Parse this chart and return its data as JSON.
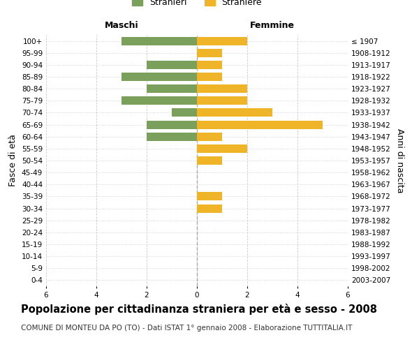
{
  "age_groups": [
    "0-4",
    "5-9",
    "10-14",
    "15-19",
    "20-24",
    "25-29",
    "30-34",
    "35-39",
    "40-44",
    "45-49",
    "50-54",
    "55-59",
    "60-64",
    "65-69",
    "70-74",
    "75-79",
    "80-84",
    "85-89",
    "90-94",
    "95-99",
    "100+"
  ],
  "birth_years": [
    "2003-2007",
    "1998-2002",
    "1993-1997",
    "1988-1992",
    "1983-1987",
    "1978-1982",
    "1973-1977",
    "1968-1972",
    "1963-1967",
    "1958-1962",
    "1953-1957",
    "1948-1952",
    "1943-1947",
    "1938-1942",
    "1933-1937",
    "1928-1932",
    "1923-1927",
    "1918-1922",
    "1913-1917",
    "1908-1912",
    "≤ 1907"
  ],
  "maschi": [
    3,
    0,
    2,
    3,
    2,
    3,
    1,
    2,
    2,
    0,
    0,
    0,
    0,
    0,
    0,
    0,
    0,
    0,
    0,
    0,
    0
  ],
  "femmine": [
    2,
    1,
    1,
    1,
    2,
    2,
    3,
    5,
    1,
    2,
    1,
    0,
    0,
    1,
    1,
    0,
    0,
    0,
    0,
    0,
    0
  ],
  "maschi_color": "#7ba05b",
  "femmine_color": "#f0b429",
  "bar_height": 0.7,
  "title": "Popolazione per cittadinanza straniera per età e sesso - 2008",
  "subtitle": "COMUNE DI MONTEU DA PO (TO) - Dati ISTAT 1° gennaio 2008 - Elaborazione TUTTITALIA.IT",
  "xlabel_left": "Maschi",
  "xlabel_right": "Femmine",
  "ylabel_left": "Fasce di età",
  "ylabel_right": "Anni di nascita",
  "legend_stranieri": "Stranieri",
  "legend_straniere": "Straniere",
  "bg_color": "#ffffff",
  "grid_color": "#cccccc",
  "title_fontsize": 10.5,
  "subtitle_fontsize": 7.5,
  "tick_fontsize": 7.5,
  "label_fontsize": 9
}
